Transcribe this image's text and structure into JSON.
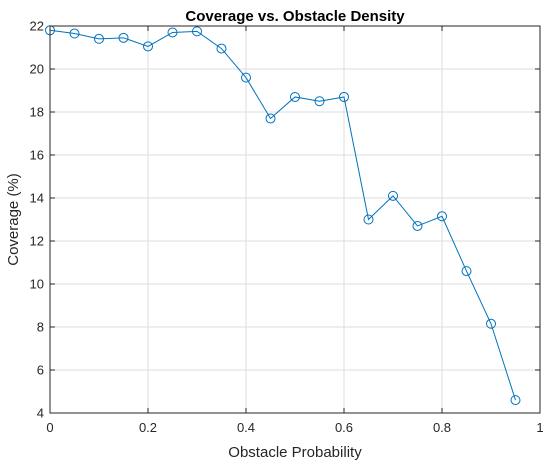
{
  "chart_data": {
    "type": "line",
    "title": "Coverage vs. Obstacle Density",
    "xlabel": "Obstacle Probability",
    "ylabel": "Coverage (%)",
    "xlim": [
      0,
      1
    ],
    "ylim": [
      4,
      22
    ],
    "x_ticks": [
      0,
      0.2,
      0.4,
      0.6,
      0.8,
      1
    ],
    "x_tick_labels": [
      "0",
      "0.2",
      "0.4",
      "0.6",
      "0.8",
      "1"
    ],
    "y_ticks": [
      4,
      6,
      8,
      10,
      12,
      14,
      16,
      18,
      20,
      22
    ],
    "y_tick_labels": [
      "4",
      "6",
      "8",
      "10",
      "12",
      "14",
      "16",
      "18",
      "20",
      "22"
    ],
    "grid": true,
    "marker": "circle",
    "series": [
      {
        "color": "#0072BD",
        "x": [
          0,
          0.05,
          0.1,
          0.15,
          0.2,
          0.25,
          0.3,
          0.35,
          0.4,
          0.45,
          0.5,
          0.55,
          0.6,
          0.65,
          0.7,
          0.75,
          0.8,
          0.85,
          0.9,
          0.95
        ],
        "y": [
          21.8,
          21.65,
          21.4,
          21.45,
          21.05,
          21.7,
          21.75,
          20.95,
          19.6,
          17.7,
          18.7,
          18.5,
          18.7,
          13.0,
          14.1,
          12.7,
          13.15,
          10.6,
          8.15,
          4.6
        ]
      }
    ]
  }
}
